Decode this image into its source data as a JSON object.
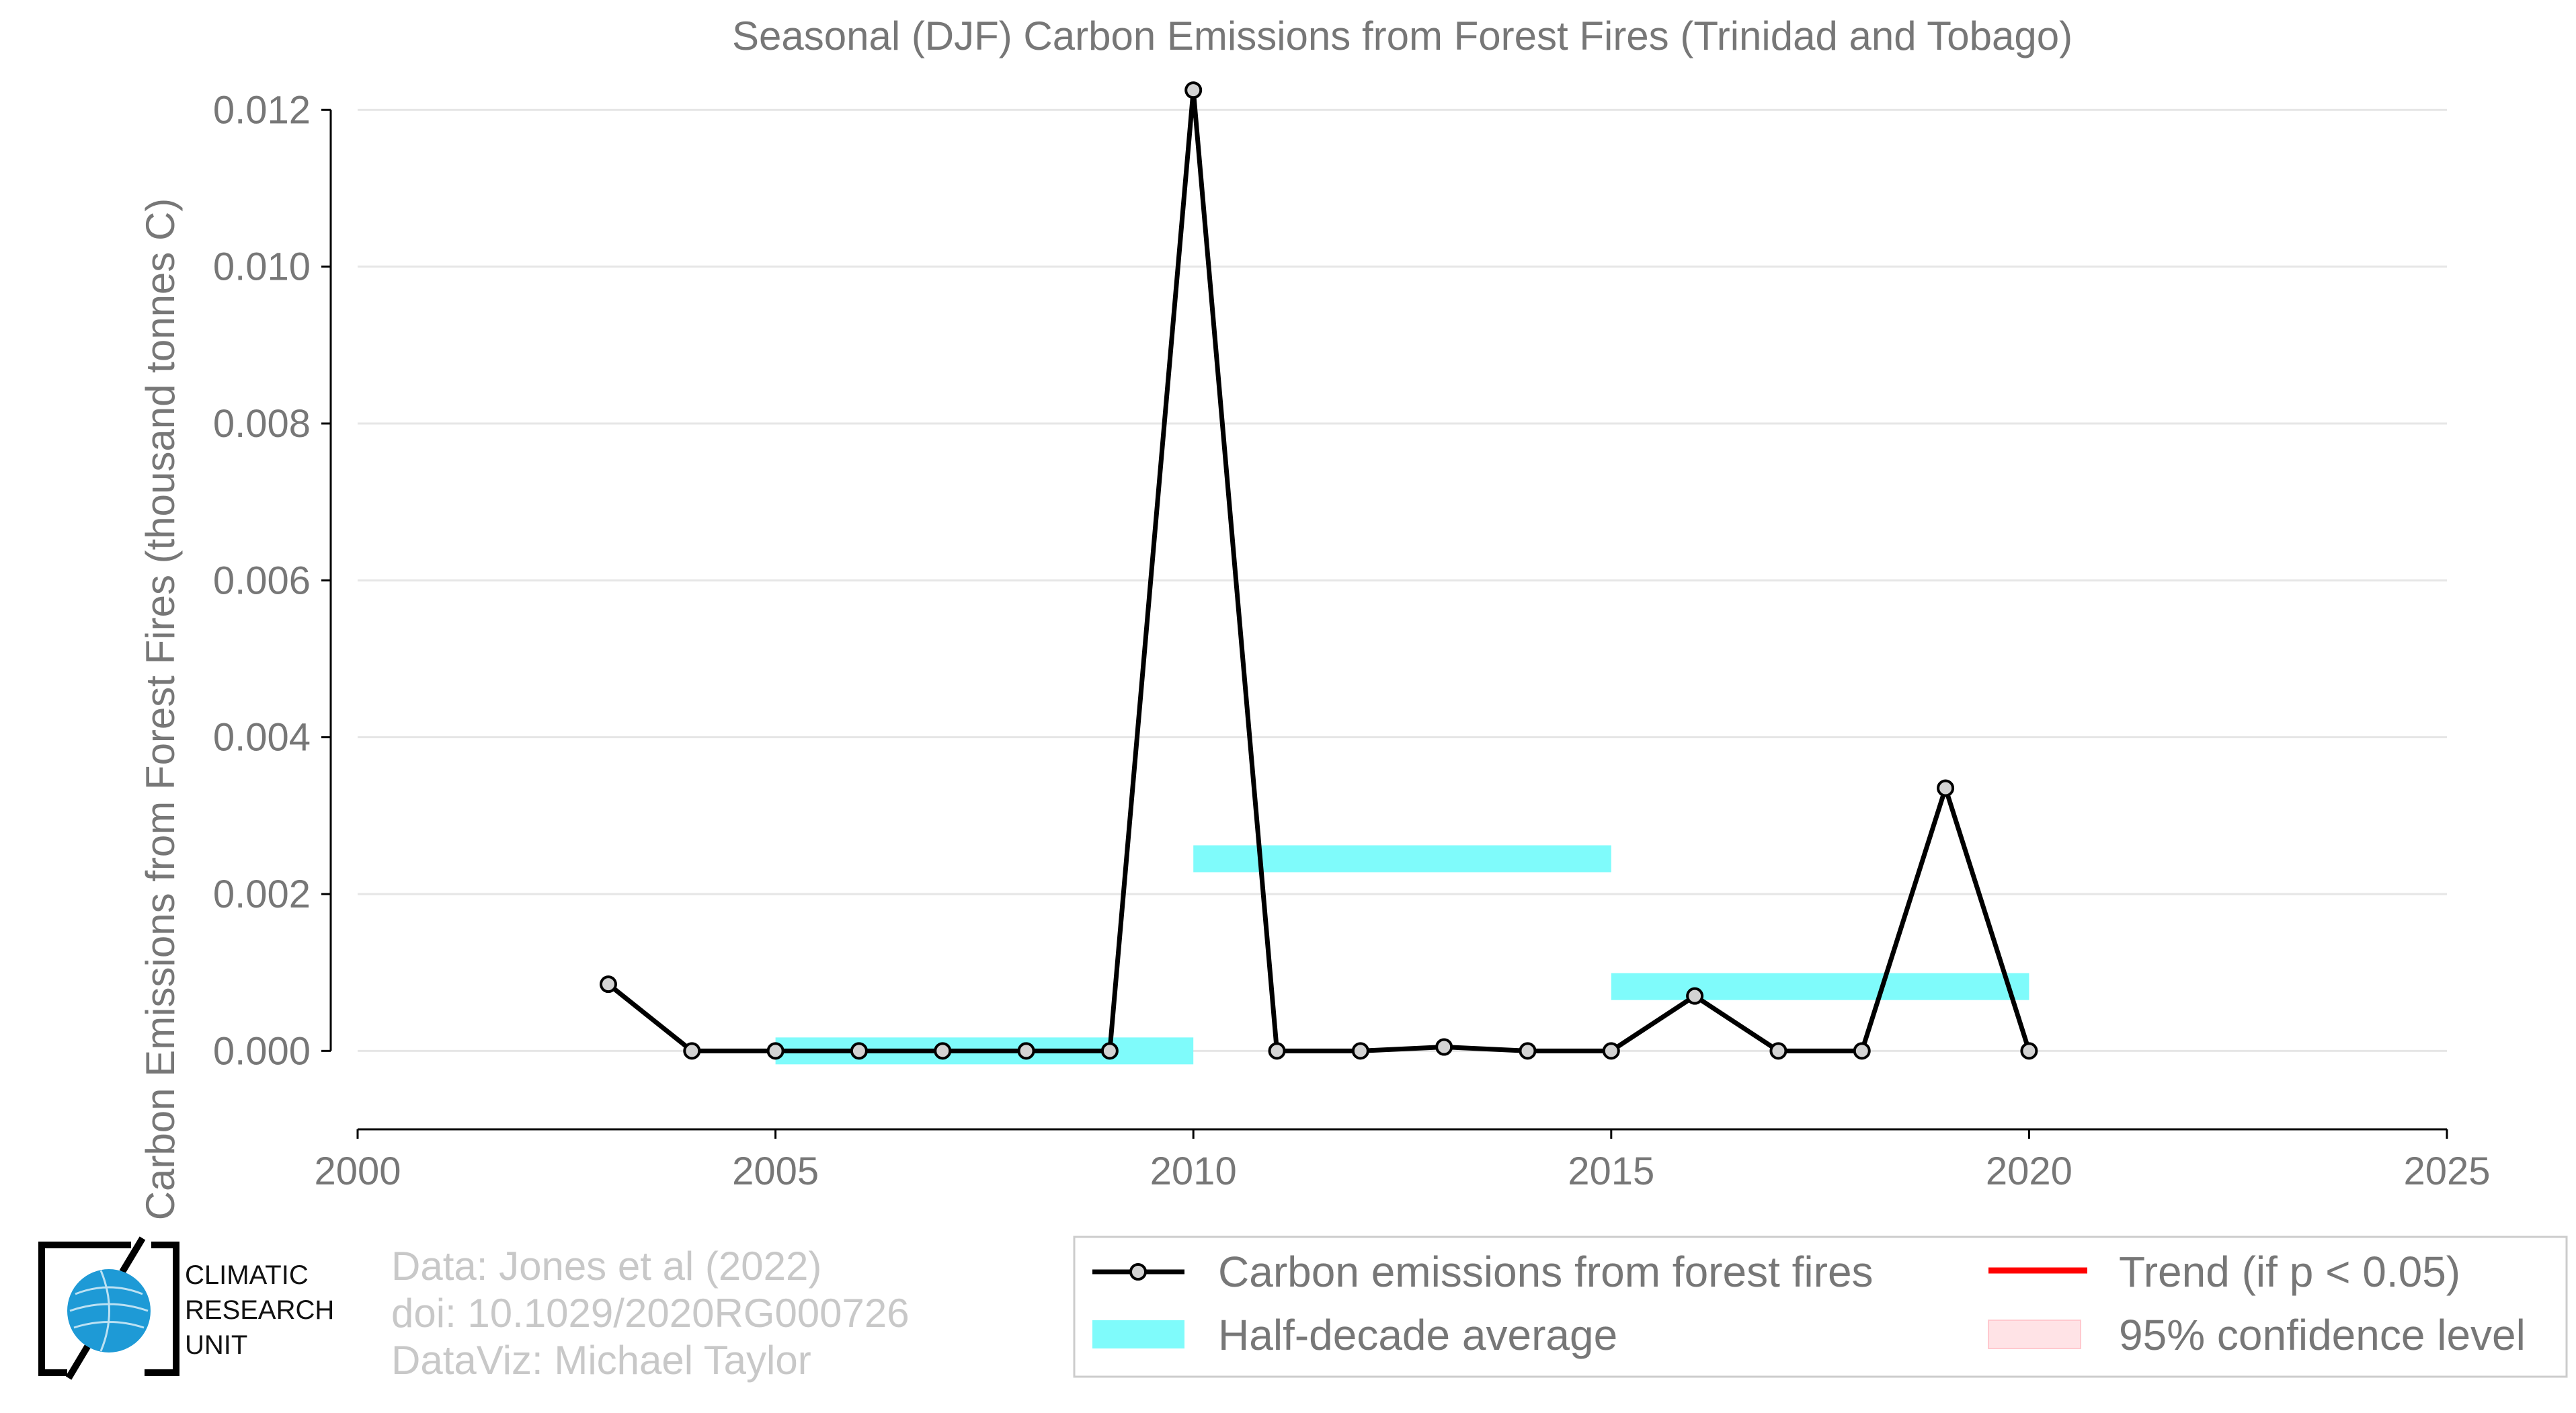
{
  "chart_data": {
    "type": "line",
    "title": "Seasonal (DJF) Carbon Emissions from Forest Fires (Trinidad and Tobago)",
    "xlabel": "",
    "ylabel": "Carbon Emissions from Forest Fires (thousand tonnes C)",
    "xlim": [
      2000,
      2025
    ],
    "ylim": [
      -0.001,
      0.0125
    ],
    "x_ticks": [
      2000,
      2005,
      2010,
      2015,
      2020,
      2025
    ],
    "x_tick_labels": [
      "2000",
      "2005",
      "2010",
      "2015",
      "2020",
      "2025"
    ],
    "y_ticks": [
      0.0,
      0.002,
      0.004,
      0.006,
      0.008,
      0.01,
      0.012
    ],
    "y_tick_labels": [
      "0.000",
      "0.002",
      "0.004",
      "0.006",
      "0.008",
      "0.010",
      "0.012"
    ],
    "grid": "horizontal",
    "legend_position": "bottom-right",
    "series": [
      {
        "name": "Carbon emissions from forest fires",
        "color": "#000000",
        "marker_fill": "#d3d3d3",
        "x": [
          2003,
          2004,
          2005,
          2006,
          2007,
          2008,
          2009,
          2010,
          2011,
          2012,
          2013,
          2014,
          2015,
          2016,
          2017,
          2018,
          2019,
          2020
        ],
        "y": [
          0.00085,
          0.0,
          0.0,
          0.0,
          0.0,
          0.0,
          0.0,
          0.01225,
          0.0,
          0.0,
          5e-05,
          0.0,
          0.0,
          0.0007,
          0.0,
          0.0,
          0.00335,
          0.0
        ]
      }
    ],
    "half_decade_average": {
      "name": "Half-decade average",
      "color": "#7ffbfb",
      "segments": [
        {
          "x0": 2005,
          "x1": 2010,
          "y": 0.0
        },
        {
          "x0": 2010,
          "x1": 2015,
          "y": 0.00245
        },
        {
          "x0": 2015,
          "x1": 2020,
          "y": 0.00082
        }
      ]
    },
    "legend": [
      {
        "label": "Carbon emissions from forest fires",
        "kind": "line-marker",
        "color": "#000000"
      },
      {
        "label": "Trend (if p < 0.05)",
        "kind": "line",
        "color": "#ff0000"
      },
      {
        "label": "Half-decade average",
        "kind": "patch",
        "color": "#7ffbfb"
      },
      {
        "label": "95% confidence level",
        "kind": "patch",
        "color": "#ffe3e6"
      }
    ]
  },
  "credits": {
    "lines": [
      "Data: Jones et al (2022)",
      "doi: 10.1029/2020RG000726",
      "DataViz: Michael Taylor"
    ]
  },
  "logo": {
    "lines": [
      "CLIMATIC",
      "RESEARCH",
      "UNIT"
    ],
    "globe_color": "#1e9ad6"
  }
}
